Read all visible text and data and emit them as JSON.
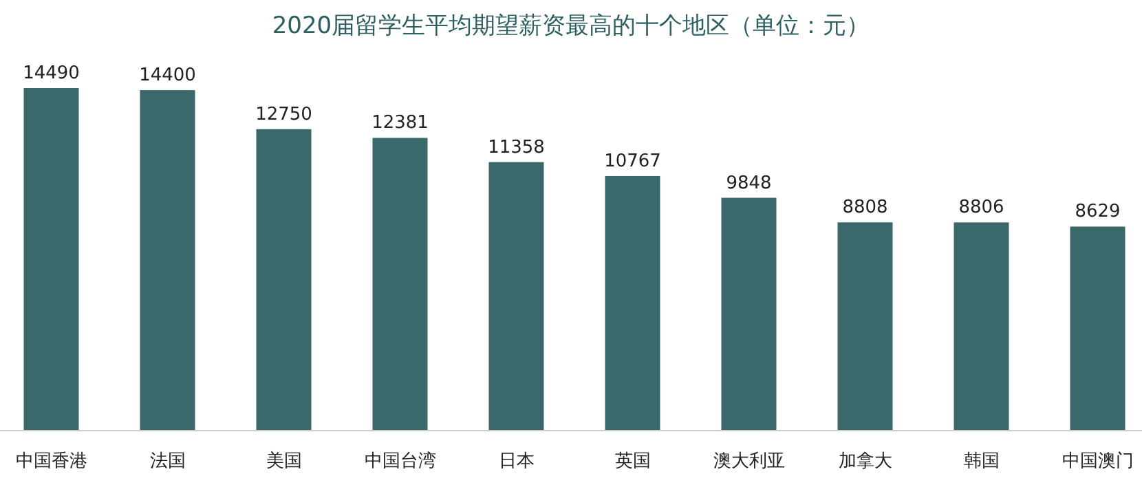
{
  "chart_data": {
    "type": "bar",
    "title": "2020届留学生平均期望薪资最高的十个地区（单位：元）",
    "categories": [
      "中国香港",
      "法国",
      "美国",
      "中国台湾",
      "日本",
      "英国",
      "澳大利亚",
      "加拿大",
      "韩国",
      "中国澳门"
    ],
    "values": [
      14490,
      14400,
      12750,
      12381,
      11358,
      10767,
      9848,
      8808,
      8806,
      8629
    ],
    "color": "#3b686b",
    "data_labels": true
  }
}
